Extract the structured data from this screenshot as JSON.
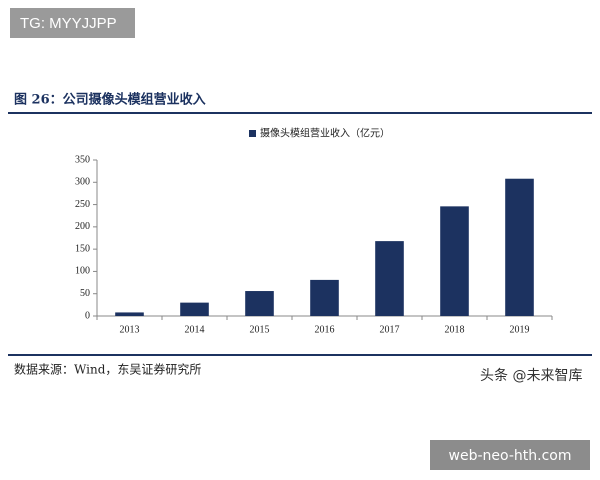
{
  "watermark": "TG: MYYJJPP",
  "source": "数据来源：Wind，东吴证券研究所",
  "credit": "头条 @未来智库",
  "site": "web-neo-hth.com",
  "chart_data": {
    "type": "bar",
    "title": "图 26：公司摄像头模组营业收入",
    "categories": [
      "2013",
      "2014",
      "2015",
      "2016",
      "2017",
      "2018",
      "2019"
    ],
    "series": [
      {
        "name": "摄像头模组营业收入（亿元）",
        "color": "#1c3260",
        "values": [
          8,
          30,
          56,
          81,
          168,
          246,
          308
        ]
      }
    ],
    "ylim": [
      0,
      350
    ],
    "yticks": [
      0,
      50,
      100,
      150,
      200,
      250,
      300,
      350
    ],
    "grid": false
  }
}
